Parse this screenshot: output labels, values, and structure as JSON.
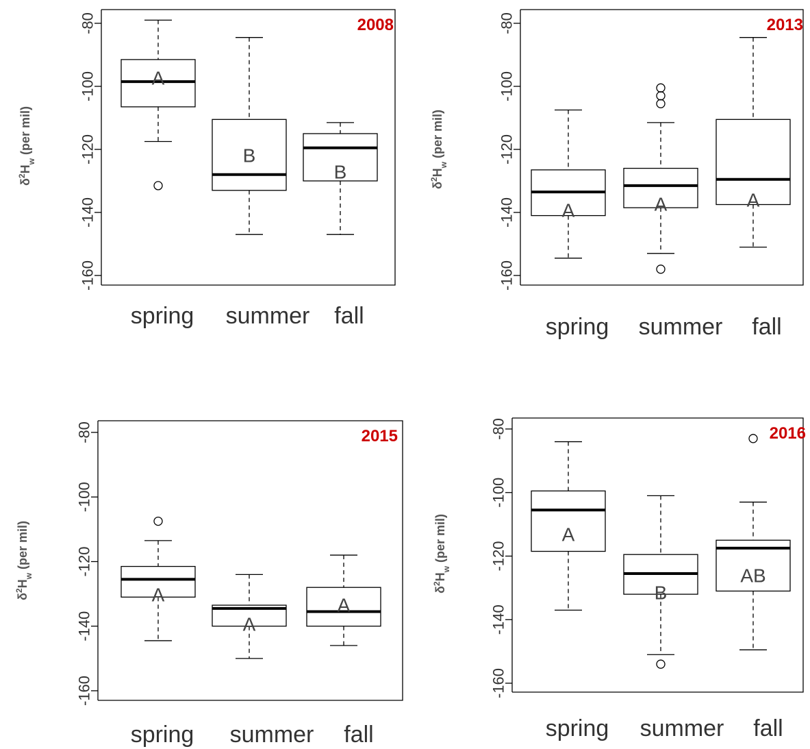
{
  "chart_data": [
    {
      "type": "boxplot",
      "title": "2008",
      "categories": [
        "spring",
        "summer",
        "fall"
      ],
      "ylabel": "δ²H_w (per mil)",
      "ylabel_main": "δ",
      "ylabel_sup": "2",
      "ylabel_H": "H",
      "ylabel_sub": "w",
      "ylabel_unit": "(per mil)",
      "ylim": [
        -162,
        -79
      ],
      "yticks": [
        -80,
        -100,
        -120,
        -140,
        -160
      ],
      "ytick_labels": [
        "-80",
        "-100",
        "-120",
        "-140",
        "-160"
      ],
      "boxes": [
        {
          "category": "spring",
          "whislo": -117.5,
          "q1": -106.5,
          "med": -98.5,
          "q3": -91.5,
          "whishi": -79,
          "fliers": [
            -131.5
          ],
          "group": "A"
        },
        {
          "category": "summer",
          "whislo": -147,
          "q1": -133,
          "med": -128,
          "q3": -110.5,
          "whishi": -84.5,
          "fliers": [],
          "group": "B"
        },
        {
          "category": "fall",
          "whislo": -147,
          "q1": -130,
          "med": -119.5,
          "q3": -115,
          "whishi": -111.5,
          "fliers": [],
          "group": "B"
        }
      ]
    },
    {
      "type": "boxplot",
      "title": "2013",
      "categories": [
        "spring",
        "summer",
        "fall"
      ],
      "ylabel": "δ²H_w (per mil)",
      "ylabel_main": "δ",
      "ylabel_sup": "2",
      "ylabel_H": "H",
      "ylabel_sub": "w",
      "ylabel_unit": "(per mil)",
      "ylim": [
        -162,
        -79
      ],
      "yticks": [
        -80,
        -100,
        -120,
        -140,
        -160
      ],
      "ytick_labels": [
        "-80",
        "-100",
        "-120",
        "-140",
        "-160"
      ],
      "boxes": [
        {
          "category": "spring",
          "whislo": -154.5,
          "q1": -141,
          "med": -133.5,
          "q3": -126.5,
          "whishi": -107.5,
          "fliers": [],
          "group": "A"
        },
        {
          "category": "summer",
          "whislo": -153,
          "q1": -138.5,
          "med": -131.5,
          "q3": -126,
          "whishi": -111.5,
          "fliers": [
            -158,
            -105.5,
            -103,
            -100.5
          ],
          "group": "A"
        },
        {
          "category": "fall",
          "whislo": -151,
          "q1": -137.5,
          "med": -129.5,
          "q3": -110.5,
          "whishi": -84.5,
          "fliers": [],
          "group": "A"
        }
      ]
    },
    {
      "type": "boxplot",
      "title": "2015",
      "categories": [
        "spring",
        "summer",
        "fall"
      ],
      "ylabel": "δ²H_w (per mil)",
      "ylabel_main": "δ",
      "ylabel_sup": "2",
      "ylabel_H": "H",
      "ylabel_sub": "w",
      "ylabel_unit": "(per mil)",
      "ylim": [
        -163,
        -77
      ],
      "yticks": [
        -80,
        -100,
        -120,
        -140,
        -160
      ],
      "ytick_labels": [
        "-80",
        "-100",
        "-120",
        "-140",
        "-160"
      ],
      "boxes": [
        {
          "category": "spring",
          "whislo": -144.5,
          "q1": -131,
          "med": -125.5,
          "q3": -121.5,
          "whishi": -113.5,
          "fliers": [
            -107.5
          ],
          "group": "A"
        },
        {
          "category": "summer",
          "whislo": -150,
          "q1": -140,
          "med": -134.5,
          "q3": -133.5,
          "whishi": -124,
          "fliers": [],
          "group": "A"
        },
        {
          "category": "fall",
          "whislo": -146,
          "q1": -140,
          "med": -135.5,
          "q3": -128,
          "whishi": -118,
          "fliers": [],
          "group": "A"
        }
      ]
    },
    {
      "type": "boxplot",
      "title": "2016",
      "categories": [
        "spring",
        "summer",
        "fall"
      ],
      "ylabel": "δ²H_w (per mil)",
      "ylabel_main": "δ",
      "ylabel_sup": "2",
      "ylabel_H": "H",
      "ylabel_sub": "w",
      "ylabel_unit": "(per mil)",
      "ylim": [
        -163,
        -79
      ],
      "yticks": [
        -80,
        -100,
        -120,
        -140,
        -160
      ],
      "ytick_labels": [
        "-80",
        "-100",
        "-120",
        "-140",
        "-160"
      ],
      "boxes": [
        {
          "category": "spring",
          "whislo": -137,
          "q1": -118.5,
          "med": -105.5,
          "q3": -99.5,
          "whishi": -84,
          "fliers": [],
          "group": "A"
        },
        {
          "category": "summer",
          "whislo": -151,
          "q1": -132,
          "med": -125.5,
          "q3": -119.5,
          "whishi": -101,
          "fliers": [
            -154
          ],
          "group": "B"
        },
        {
          "category": "fall",
          "whislo": -149.5,
          "q1": -131,
          "med": -117.5,
          "q3": -115,
          "whishi": -103,
          "fliers": [
            -83
          ],
          "group": "AB"
        }
      ]
    }
  ],
  "colors": {
    "year_label": "#cc0000",
    "ink": "#000000",
    "text": "#333333"
  }
}
